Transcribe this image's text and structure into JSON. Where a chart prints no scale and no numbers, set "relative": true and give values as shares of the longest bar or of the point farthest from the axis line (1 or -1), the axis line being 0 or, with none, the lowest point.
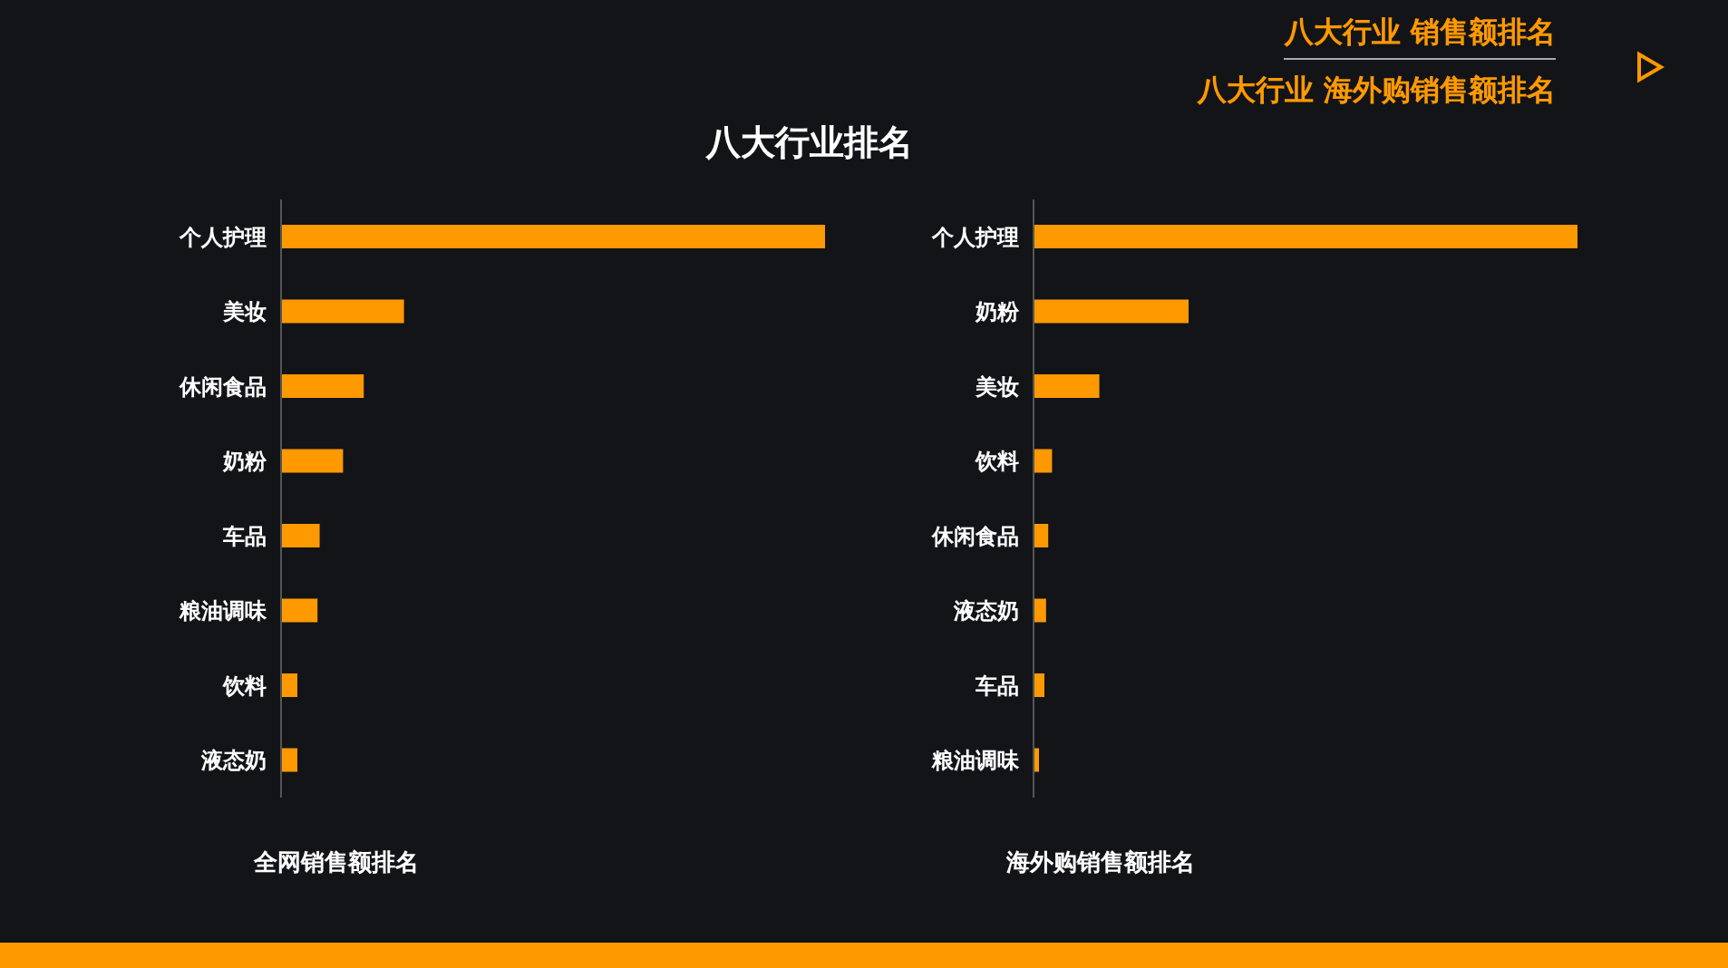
{
  "chart_data": [
    {
      "type": "bar",
      "orientation": "horizontal",
      "relative": true,
      "title": "八大行业排名",
      "xlabel": "全网销售额排名",
      "annotations": [
        "八大行业 销售额排名",
        "八大行业 海外购销售额排名"
      ],
      "categories": [
        "个人护理",
        "美妆",
        "休闲食品",
        "奶粉",
        "车品",
        "粮油调味",
        "饮料",
        "液态奶"
      ],
      "values": [
        1,
        0.226,
        0.152,
        0.114,
        0.071,
        0.067,
        0.03,
        0.03
      ],
      "color": "#ff9900",
      "grid": false,
      "legend": false
    },
    {
      "type": "bar",
      "orientation": "horizontal",
      "relative": true,
      "xlabel": "海外购销售额排名",
      "categories": [
        "个人护理",
        "奶粉",
        "美妆",
        "饮料",
        "休闲食品",
        "液态奶",
        "车品",
        "粮油调味"
      ],
      "values": [
        1,
        0.285,
        0.121,
        0.034,
        0.027,
        0.023,
        0.02,
        0.01
      ],
      "color": "#ff9900",
      "grid": false,
      "legend": false
    }
  ]
}
